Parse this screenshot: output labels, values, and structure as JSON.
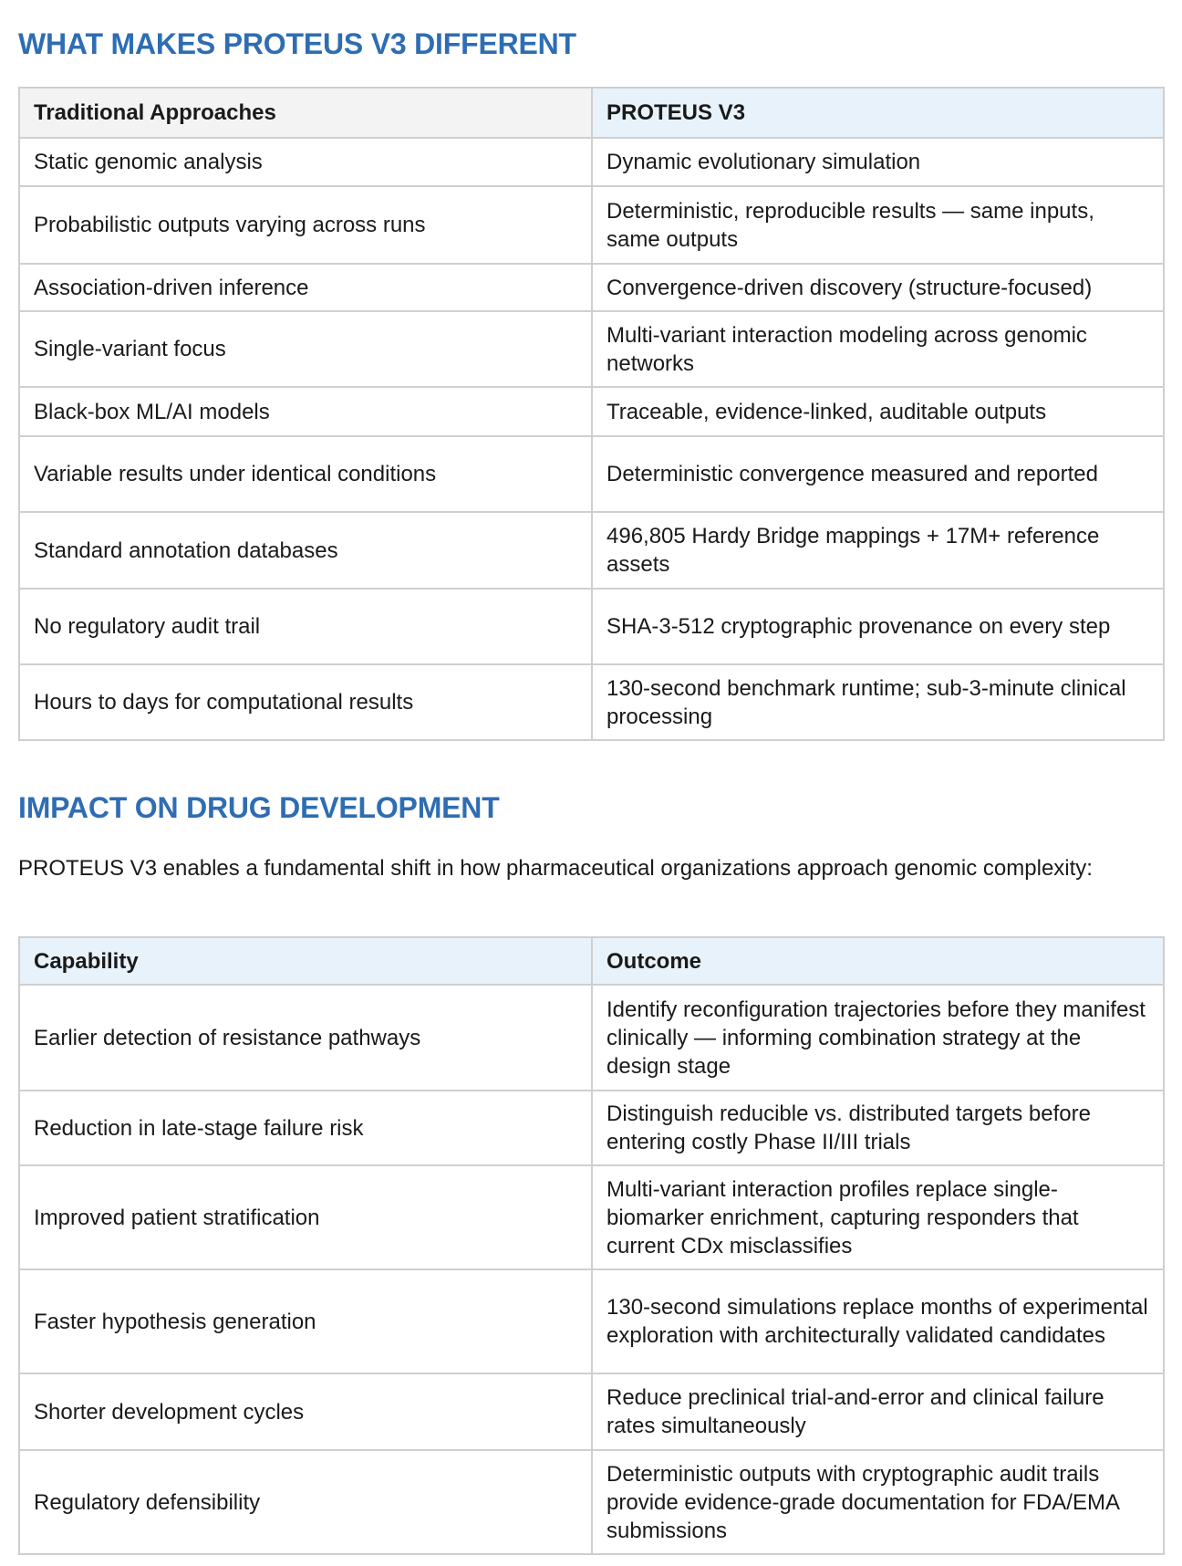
{
  "section1": {
    "title": "WHAT MAKES PROTEUS V3 DIFFERENT",
    "headers": [
      "Traditional Approaches",
      "PROTEUS V3"
    ],
    "rows": [
      [
        "Static genomic analysis",
        "Dynamic evolutionary simulation"
      ],
      [
        "Probabilistic outputs varying across runs",
        "Deterministic, reproducible results — same inputs, same outputs"
      ],
      [
        "Association-driven inference",
        "Convergence-driven discovery (structure-focused)"
      ],
      [
        "Single-variant focus",
        "Multi-variant interaction modeling across genomic networks"
      ],
      [
        "Black-box ML/AI models",
        "Traceable, evidence-linked, auditable outputs"
      ],
      [
        "Variable results under identical conditions",
        "Deterministic convergence measured and reported"
      ],
      [
        "Standard annotation databases",
        "496,805 Hardy Bridge mappings + 17M+ reference assets"
      ],
      [
        "No regulatory audit trail",
        "SHA-3-512 cryptographic provenance on every step"
      ],
      [
        "Hours to days for computational results",
        "130-second benchmark runtime; sub-3-minute clinical processing"
      ]
    ]
  },
  "section2": {
    "title": "IMPACT ON DRUG DEVELOPMENT",
    "intro": "PROTEUS V3 enables a fundamental shift in how pharmaceutical organizations approach genomic complexity:",
    "headers": [
      "Capability",
      "Outcome"
    ],
    "rows": [
      [
        "Earlier detection of resistance pathways",
        "Identify reconfiguration trajectories before they manifest clinically — informing combination strategy at the design stage"
      ],
      [
        "Reduction in late-stage failure risk",
        "Distinguish reducible vs. distributed targets before entering costly Phase II/III trials"
      ],
      [
        "Improved patient stratification",
        "Multi-variant interaction profiles replace single-biomarker enrichment, capturing responders that current CDx misclassifies"
      ],
      [
        "Faster hypothesis generation",
        "130-second simulations replace months of experimental exploration with architecturally validated candidates"
      ],
      [
        "Shorter development cycles",
        "Reduce preclinical trial-and-error and clinical failure rates simultaneously"
      ],
      [
        "Regulatory defensibility",
        "Deterministic outputs with cryptographic audit trails provide evidence-grade documentation for FDA/EMA submissions"
      ]
    ]
  }
}
